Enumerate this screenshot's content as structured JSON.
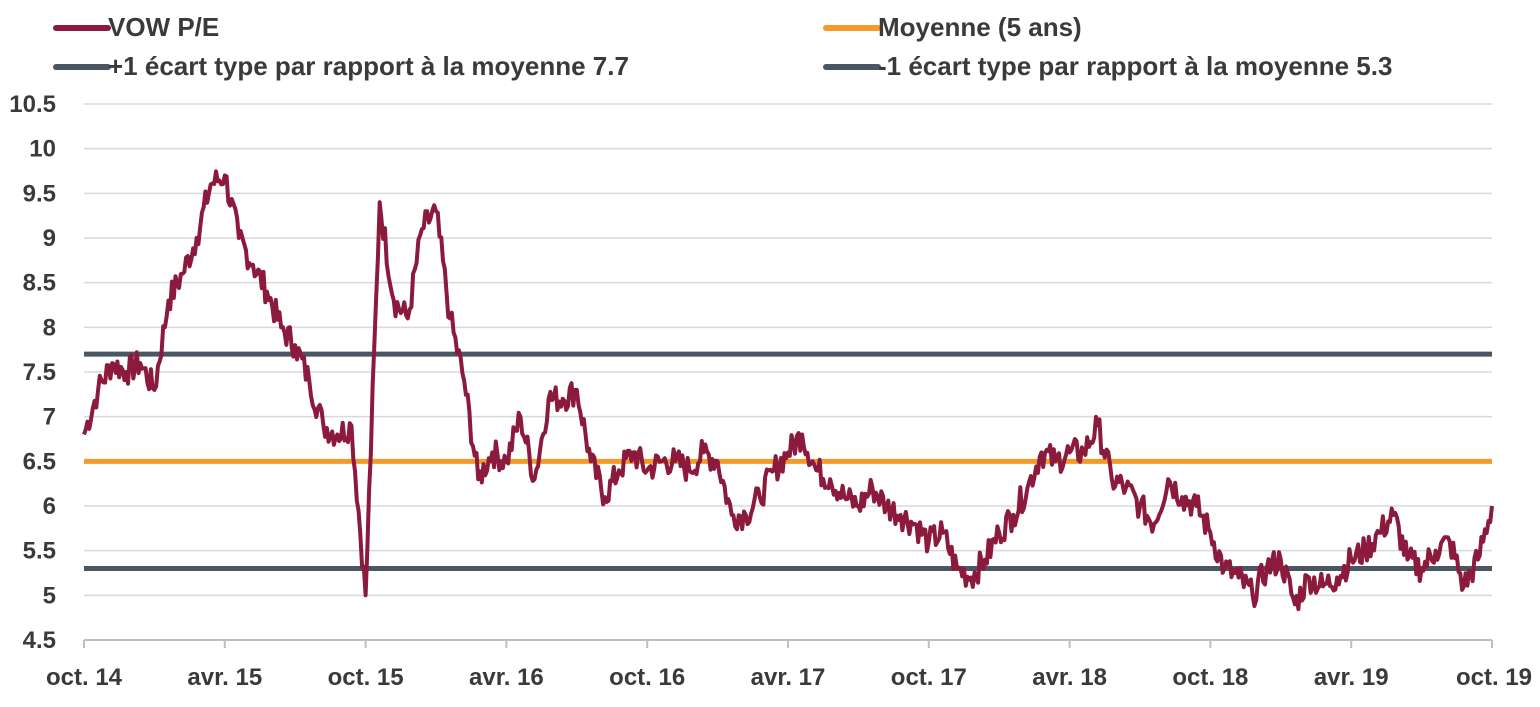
{
  "chart_data": {
    "type": "line",
    "title": "",
    "xlabel": "",
    "ylabel": "",
    "ylim": [
      4.5,
      10.5
    ],
    "y_ticks": [
      "10.5",
      "10",
      "9.5",
      "9",
      "8.5",
      "8",
      "7.5",
      "7",
      "6.5",
      "6",
      "5.5",
      "5",
      "4.5"
    ],
    "x_ticks": [
      "oct. 14",
      "avr. 15",
      "oct. 15",
      "avr. 16",
      "oct. 16",
      "avr. 17",
      "oct. 17",
      "avr. 18",
      "oct. 18",
      "avr. 19",
      "oct. 19"
    ],
    "grid": "horizontal",
    "legend_position": "top",
    "legend": [
      {
        "label": "VOW P/E",
        "color": "#8b1a3c"
      },
      {
        "label": "Moyenne (5 ans)",
        "color": "#f39a2b"
      },
      {
        "label": "+1 écart type par rapport à la moyenne 7.7",
        "color": "#4a5763"
      },
      {
        "label": "-1 écart type par rapport à la moyenne 5.3",
        "color": "#4a5763"
      }
    ],
    "series": [
      {
        "name": "VOW P/E",
        "color": "#8b1a3c",
        "x": [
          0,
          0.1,
          0.2,
          0.3,
          0.4,
          0.5,
          0.6,
          0.7,
          0.8,
          0.9,
          1.0,
          1.1,
          1.2,
          1.3,
          1.4,
          1.5,
          1.6,
          1.7,
          1.8,
          1.9,
          2.0,
          2.1,
          2.2,
          2.3,
          2.4,
          2.5,
          2.6,
          2.7,
          2.8,
          2.9,
          3.0,
          3.1,
          3.2,
          3.3,
          3.4,
          3.5,
          3.6,
          3.7,
          3.8,
          3.9,
          4.0,
          4.1,
          4.2,
          4.3,
          4.4,
          4.5,
          4.6,
          4.7,
          4.8,
          4.9,
          5.0,
          5.1,
          5.2,
          5.3,
          5.4,
          5.5,
          5.6,
          5.7,
          5.8,
          5.9,
          6.0,
          6.1,
          6.2,
          6.3,
          6.4,
          6.5,
          6.6,
          6.7,
          6.8,
          6.9,
          7.0,
          7.1,
          7.2,
          7.3,
          7.4,
          7.5,
          7.6,
          7.7,
          7.8,
          7.9,
          8.0,
          8.1,
          8.2,
          8.3,
          8.4,
          8.5,
          8.6,
          8.7,
          8.8,
          8.9,
          9.0,
          9.1,
          9.2,
          9.3,
          9.4,
          9.5,
          9.6,
          9.7,
          9.8,
          9.9,
          10.0
        ],
        "values": [
          6.8,
          7.3,
          7.6,
          7.5,
          7.6,
          7.3,
          8.3,
          8.6,
          9.0,
          9.6,
          9.7,
          9.0,
          8.7,
          8.4,
          8.0,
          7.8,
          7.4,
          6.9,
          6.8,
          6.9,
          5.0,
          9.4,
          8.3,
          8.1,
          9.1,
          9.3,
          8.1,
          7.4,
          6.3,
          6.6,
          6.5,
          7.0,
          6.3,
          7.2,
          7.2,
          7.3,
          6.5,
          6.1,
          6.4,
          6.6,
          6.4,
          6.5,
          6.5,
          6.4,
          6.6,
          6.5,
          5.9,
          5.9,
          6.1,
          6.4,
          6.6,
          6.8,
          6.4,
          6.3,
          6.1,
          6.0,
          6.2,
          6.0,
          5.9,
          5.8,
          5.6,
          5.7,
          5.3,
          5.2,
          5.4,
          5.7,
          5.9,
          6.2,
          6.6,
          6.5,
          6.6,
          6.6,
          6.9,
          6.3,
          6.2,
          6.0,
          5.8,
          6.3,
          6.1,
          6.0,
          5.7,
          5.3,
          5.2,
          5.0,
          5.3,
          5.4,
          4.9,
          5.2,
          5.1,
          5.2,
          5.4,
          5.5,
          5.7,
          5.9,
          5.4,
          5.3,
          5.5,
          5.6,
          5.1,
          5.4,
          6.0
        ]
      },
      {
        "name": "Moyenne (5 ans)",
        "color": "#f39a2b",
        "constant": 6.5
      },
      {
        "name": "+1 écart type par rapport à la moyenne 7.7",
        "color": "#4a5763",
        "constant": 7.7
      },
      {
        "name": "-1 écart type par rapport à la moyenne 5.3",
        "color": "#4a5763",
        "constant": 5.3
      }
    ]
  }
}
